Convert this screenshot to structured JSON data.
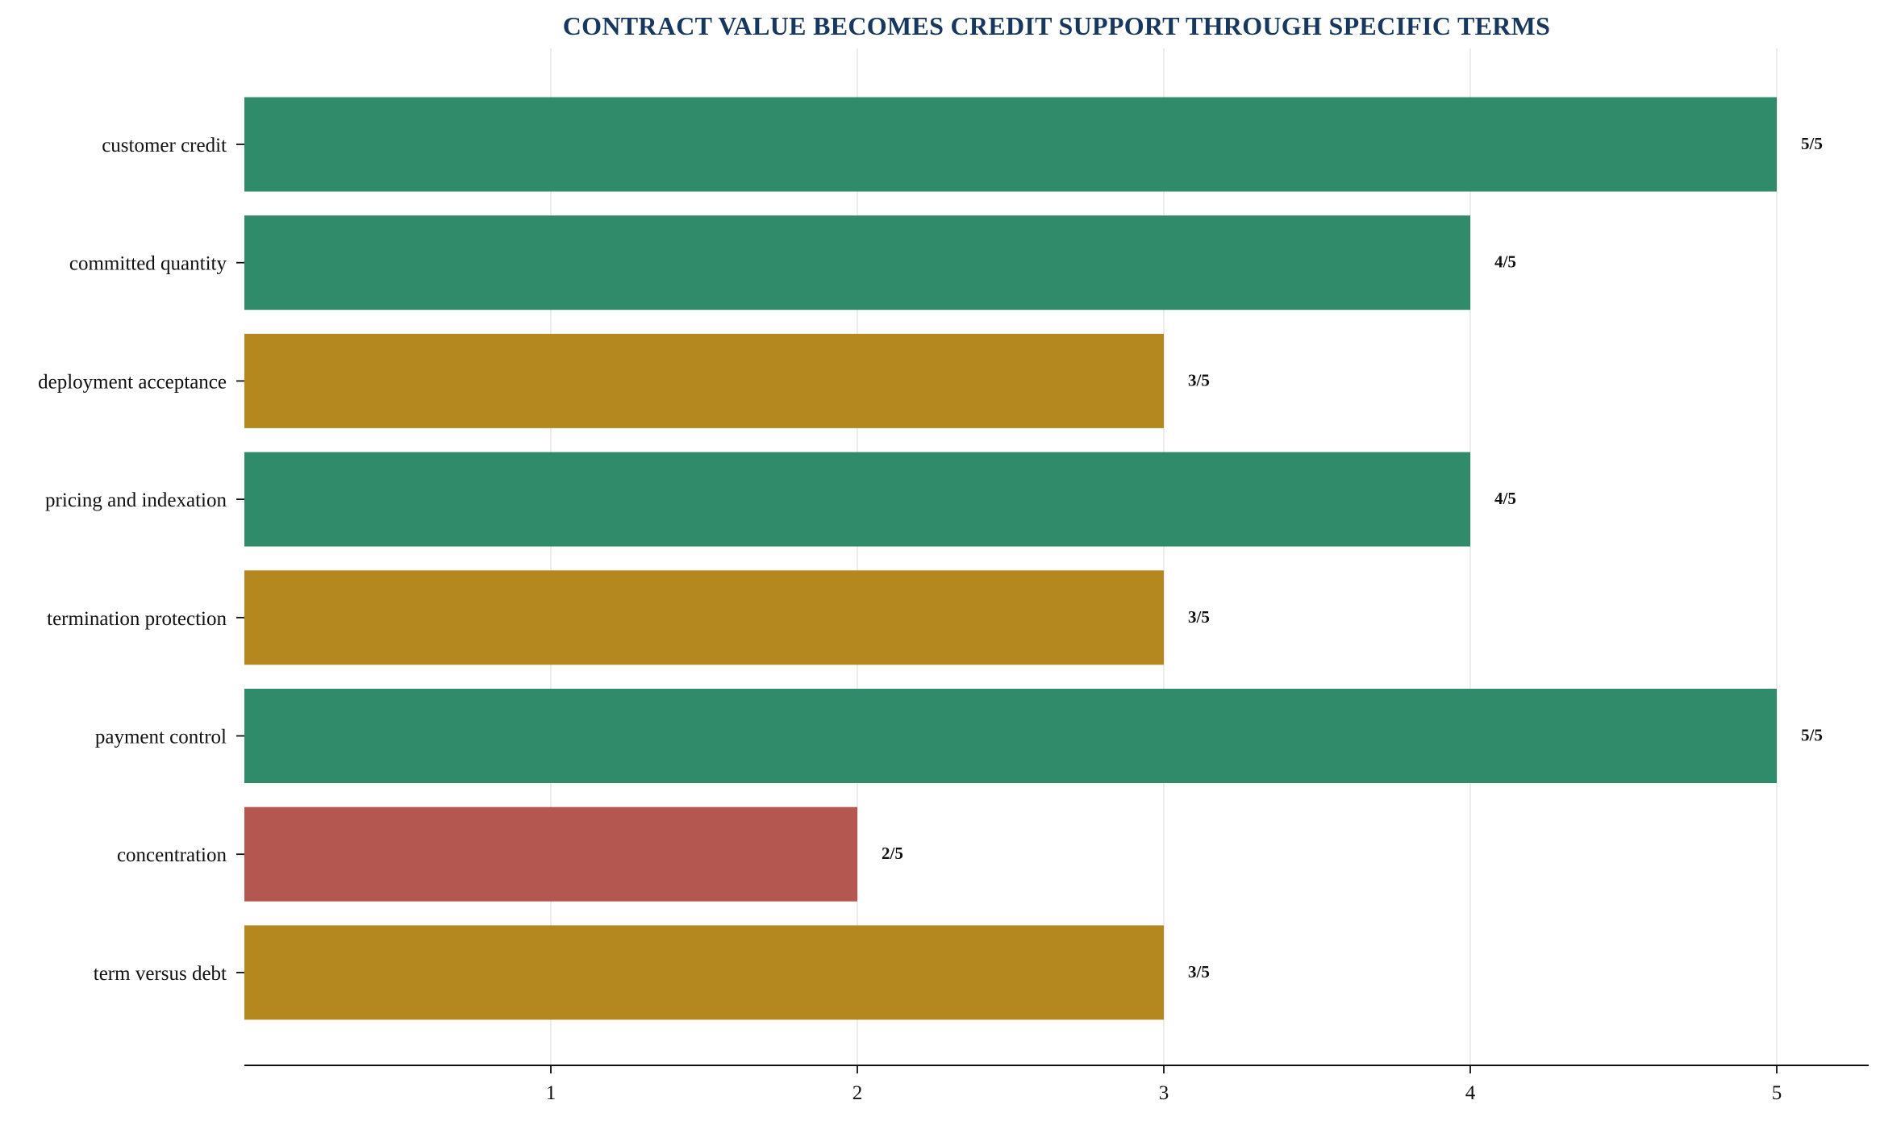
{
  "chart_data": {
    "type": "bar",
    "orientation": "horizontal",
    "title": "CONTRACT VALUE BECOMES CREDIT SUPPORT THROUGH SPECIFIC TERMS",
    "xlabel": "",
    "ylabel": "",
    "xlim": [
      0,
      5.3
    ],
    "xticks": [
      "1",
      "2",
      "3",
      "4",
      "5"
    ],
    "grid": true,
    "categories": [
      "customer credit",
      "committed quantity",
      "deployment acceptance",
      "pricing and indexation",
      "termination protection",
      "payment control",
      "concentration",
      "term versus debt"
    ],
    "values": [
      5,
      4,
      3,
      4,
      3,
      5,
      2,
      3
    ],
    "value_labels": [
      "5/5",
      "4/5",
      "3/5",
      "4/5",
      "3/5",
      "5/5",
      "2/5",
      "3/5"
    ],
    "colors": {
      "strong": "#2f8b6a",
      "medium": "#b5871f",
      "weak": "#b35750",
      "title": "#17375e",
      "grid": "#e6e6e6",
      "axis": "#111111"
    },
    "bar_color_keys": [
      "strong",
      "strong",
      "medium",
      "strong",
      "medium",
      "strong",
      "weak",
      "medium"
    ]
  }
}
